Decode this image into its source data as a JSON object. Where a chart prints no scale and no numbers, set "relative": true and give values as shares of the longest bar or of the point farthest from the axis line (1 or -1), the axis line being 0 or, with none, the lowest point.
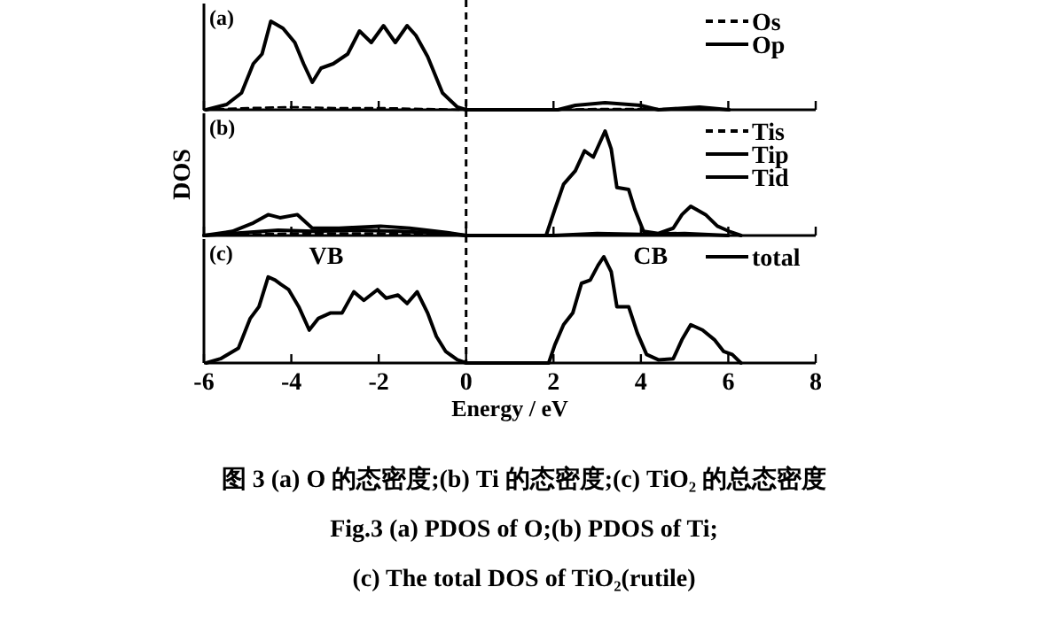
{
  "chart_data": [
    {
      "type": "line",
      "title": "(a)",
      "relative": true,
      "xlim": [
        -6,
        8
      ],
      "xticks": [
        -6,
        -4,
        -2,
        0,
        2,
        4,
        6,
        8
      ],
      "tick_labels": false,
      "legend": "top right",
      "grid": false,
      "ref_lines": [
        {
          "axis": "x",
          "value": 0,
          "line_style": "dashed",
          "color": "#000000"
        }
      ],
      "series": [
        {
          "name": "Os",
          "color": "#000000",
          "line_style": "dashed",
          "x": [
            -6,
            -5,
            -4,
            -3,
            -2,
            -1,
            0,
            2,
            3,
            4,
            5,
            6
          ],
          "values": [
            0,
            0.02,
            0.03,
            0.02,
            0.02,
            0.01,
            0,
            0,
            0.01,
            0.01,
            0.01,
            0
          ]
        },
        {
          "name": "Op",
          "color": "#000000",
          "line_style": "solid",
          "x": [
            -5.95,
            -5.48,
            -5.14,
            -4.87,
            -4.67,
            -4.47,
            -4.19,
            -3.92,
            -3.72,
            -3.52,
            -3.32,
            -3.04,
            -2.71,
            -2.44,
            -2.17,
            -1.89,
            -1.62,
            -1.35,
            -1.15,
            -0.88,
            -0.54,
            -0.2,
            0,
            2.1,
            2.5,
            3.18,
            3.99,
            4.4,
            5.34,
            6.02
          ],
          "values": [
            0,
            0.06,
            0.19,
            0.52,
            0.63,
            1,
            0.92,
            0.76,
            0.52,
            0.31,
            0.47,
            0.52,
            0.63,
            0.89,
            0.76,
            0.95,
            0.76,
            0.95,
            0.84,
            0.6,
            0.19,
            0.03,
            0,
            0,
            0.05,
            0.08,
            0.05,
            0,
            0.03,
            0
          ]
        }
      ]
    },
    {
      "type": "line",
      "title": "(b)",
      "ylabel": "DOS",
      "relative": true,
      "xlim": [
        -6,
        8
      ],
      "xticks": [
        -6,
        -4,
        -2,
        0,
        2,
        4,
        6,
        8
      ],
      "tick_labels": false,
      "legend": "top right",
      "grid": false,
      "ref_lines": [
        {
          "axis": "x",
          "value": 0,
          "line_style": "dashed",
          "color": "#000000"
        }
      ],
      "series": [
        {
          "name": "Tis",
          "color": "#000000",
          "line_style": "dashed",
          "x": [
            -6,
            -5,
            -4,
            -3,
            -2,
            -1,
            0,
            2,
            3,
            4,
            5,
            6
          ],
          "values": [
            0,
            0.01,
            0.02,
            0.02,
            0.02,
            0.01,
            0,
            0,
            0.01,
            0.01,
            0.01,
            0
          ]
        },
        {
          "name": "Tip",
          "color": "#000000",
          "line_style": "solid",
          "x": [
            -6,
            -5,
            -4.3,
            -3.5,
            -2.5,
            -1.5,
            -0.5,
            0,
            2,
            3,
            4,
            5,
            6
          ],
          "values": [
            0,
            0.03,
            0.05,
            0.04,
            0.05,
            0.04,
            0.02,
            0,
            0,
            0.02,
            0.01,
            0.02,
            0
          ]
        },
        {
          "name": "Tid",
          "color": "#000000",
          "line_style": "solid",
          "x": [
            -6,
            -5.35,
            -4.87,
            -4.53,
            -4.26,
            -3.86,
            -3.52,
            -2.91,
            -1.96,
            -1.29,
            -0.47,
            0,
            1.83,
            2.03,
            2.23,
            2.5,
            2.71,
            2.91,
            3.18,
            3.32,
            3.45,
            3.72,
            3.86,
            4.06,
            4.4,
            4.74,
            4.94,
            5.14,
            5.48,
            5.75,
            6.02,
            6.29
          ],
          "values": [
            0,
            0.04,
            0.12,
            0.2,
            0.17,
            0.2,
            0.07,
            0.07,
            0.09,
            0.07,
            0.03,
            0,
            0,
            0.25,
            0.49,
            0.62,
            0.81,
            0.75,
            1,
            0.83,
            0.46,
            0.44,
            0.25,
            0.04,
            0.02,
            0.07,
            0.2,
            0.28,
            0.2,
            0.09,
            0.04,
            0
          ]
        }
      ]
    },
    {
      "type": "line",
      "title": "(c)",
      "xlabel": "Energy / eV",
      "relative": true,
      "xlim": [
        -6,
        8
      ],
      "xticks": [
        -6,
        -4,
        -2,
        0,
        2,
        4,
        6,
        8
      ],
      "tick_labels": "x",
      "legend": "top right",
      "grid": false,
      "ref_lines": [
        {
          "axis": "x",
          "value": 0,
          "line_style": "dashed",
          "color": "#000000"
        }
      ],
      "annotations": [
        "VB",
        "CB",
        "图 3 (a) O 的态密度;(b) Ti 的态密度;(c) TiO₂ 的总态密度",
        "Fig.3 (a) PDOS of O;(b) PDOS of Ti;",
        "(c) The total DOS of TiO₂(rutile)"
      ],
      "series": [
        {
          "name": "total",
          "color": "#000000",
          "line_style": "solid",
          "x": [
            -5.95,
            -5.62,
            -5.21,
            -4.94,
            -4.74,
            -4.53,
            -4.37,
            -4.24,
            -4.06,
            -3.83,
            -3.59,
            -3.38,
            -3.11,
            -2.84,
            -2.57,
            -2.34,
            -2.03,
            -1.83,
            -1.56,
            -1.35,
            -1.12,
            -0.88,
            -0.68,
            -0.47,
            -0.2,
            0,
            1.89,
            2.03,
            2.23,
            2.44,
            2.64,
            2.84,
            3.02,
            3.15,
            3.32,
            3.45,
            3.72,
            3.92,
            4.13,
            4.4,
            4.74,
            4.94,
            5.14,
            5.41,
            5.68,
            5.89,
            6.09,
            6.29
          ],
          "values": [
            0,
            0.04,
            0.14,
            0.42,
            0.53,
            0.81,
            0.78,
            0.74,
            0.69,
            0.53,
            0.31,
            0.42,
            0.47,
            0.47,
            0.67,
            0.59,
            0.69,
            0.61,
            0.64,
            0.56,
            0.67,
            0.47,
            0.25,
            0.11,
            0.03,
            0,
            0,
            0.17,
            0.36,
            0.47,
            0.75,
            0.78,
            0.92,
            1,
            0.86,
            0.53,
            0.53,
            0.28,
            0.08,
            0.03,
            0.04,
            0.22,
            0.36,
            0.31,
            0.22,
            0.11,
            0.08,
            0
          ]
        }
      ]
    }
  ]
}
